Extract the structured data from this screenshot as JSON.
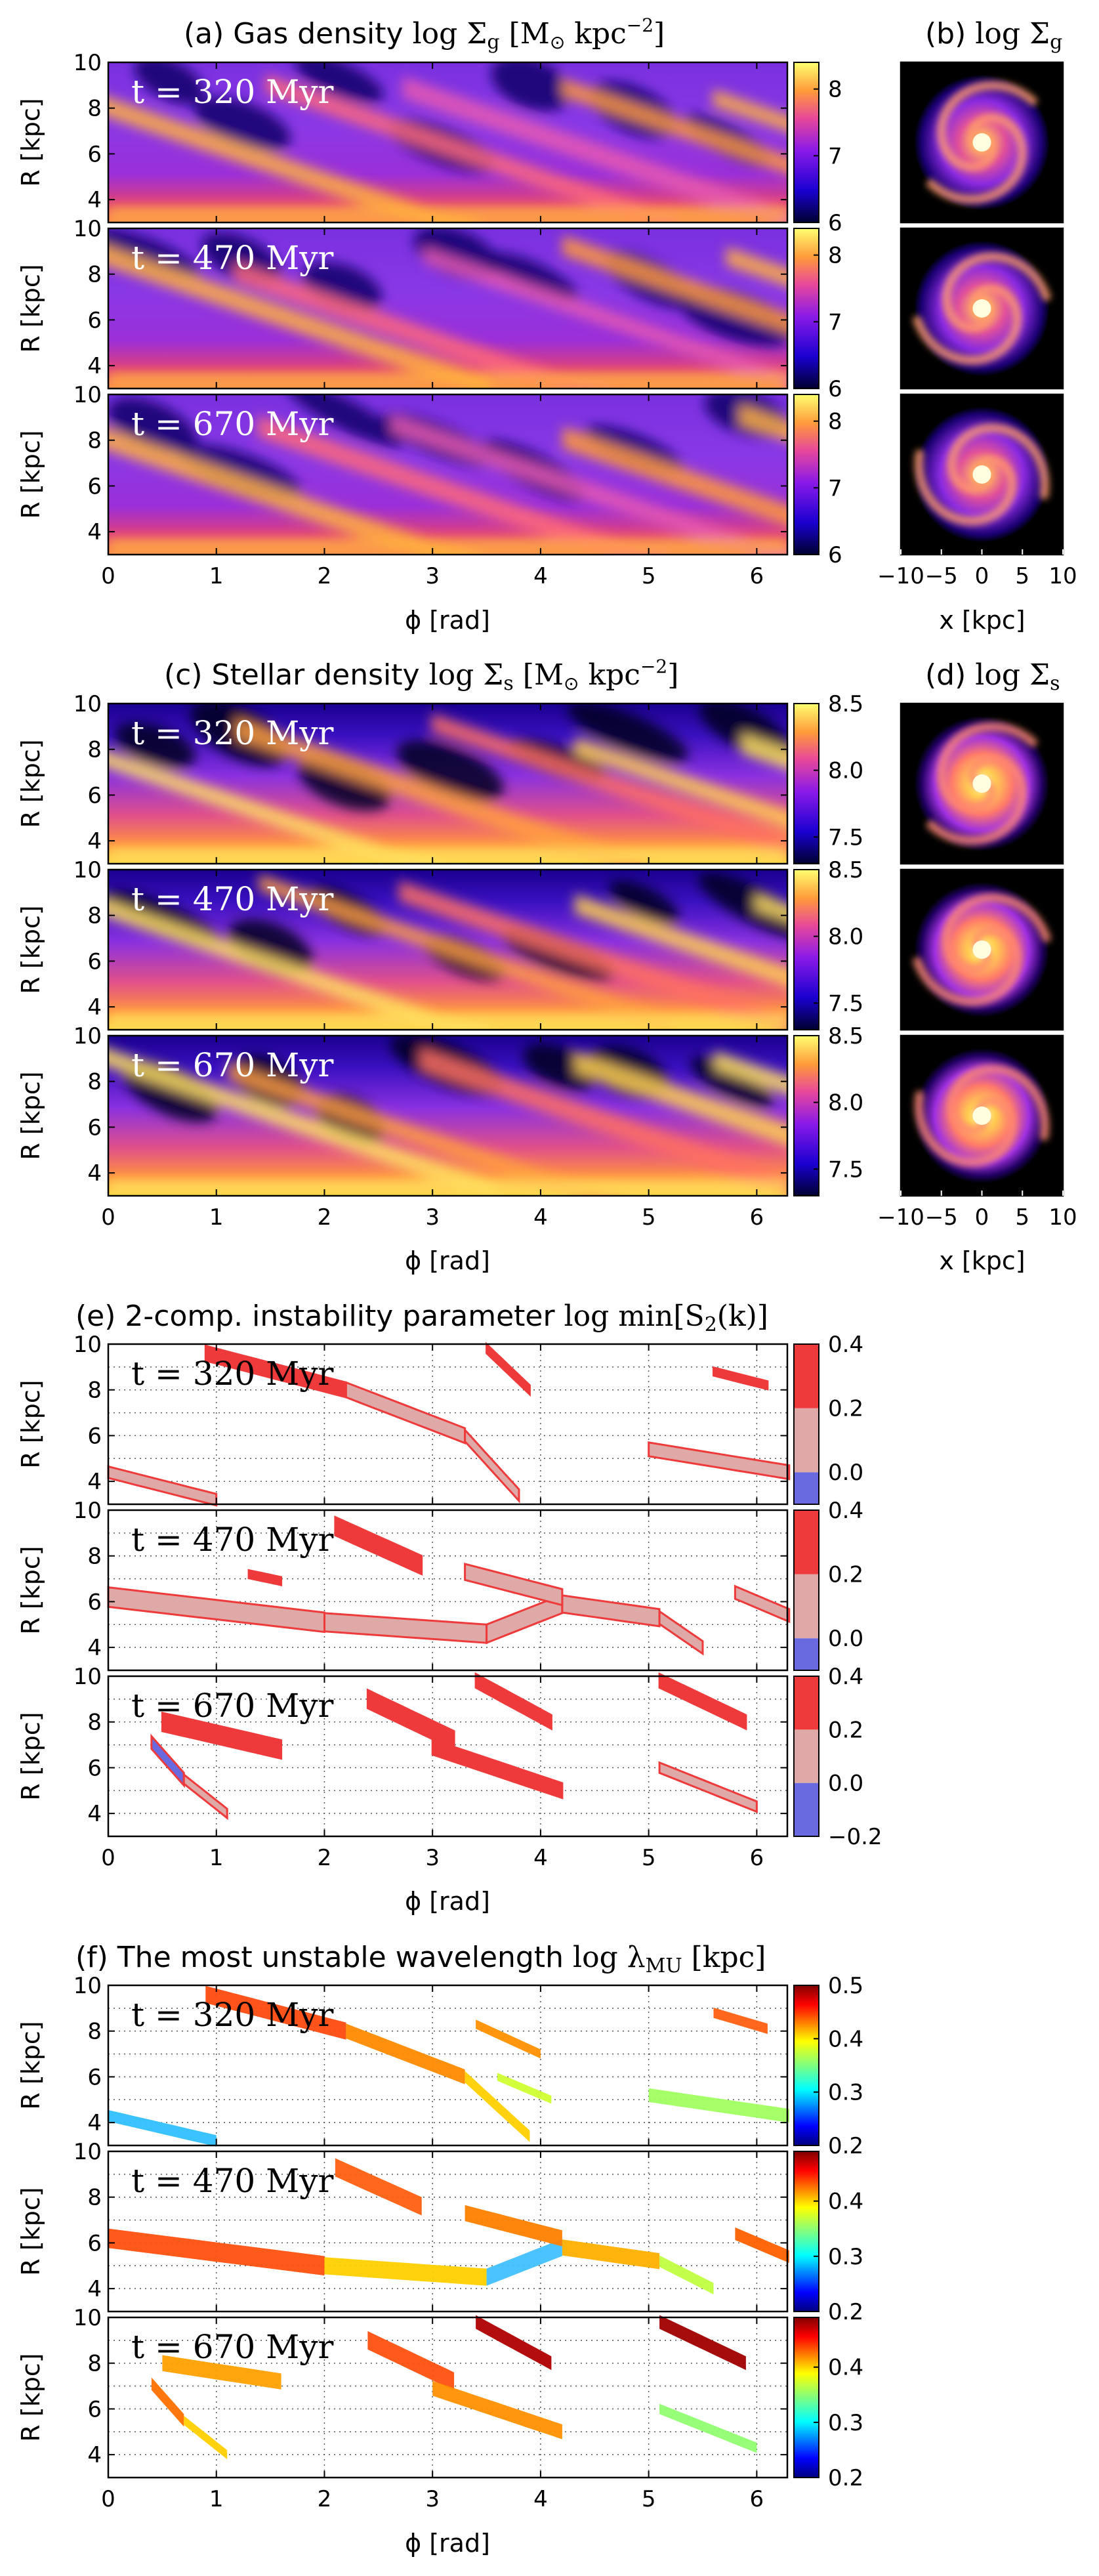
{
  "chart_data": [
    {
      "panel": "a",
      "type": "heatmap",
      "title": "(a) Gas density log Σ_g [M_⊙ kpc^−2]",
      "xlabel": "ϕ [rad]",
      "ylabel": "R [kpc]",
      "xlim": [
        0,
        6.283
      ],
      "ylim": [
        3,
        10
      ],
      "xticks": [
        "0",
        "1",
        "2",
        "3",
        "4",
        "5",
        "6"
      ],
      "yticks": [
        "4",
        "6",
        "8",
        "10"
      ],
      "colorbar": {
        "min": 6,
        "max": 8.4,
        "ticks": [
          "6",
          "7",
          "8"
        ],
        "colormap": "gnuplot2"
      },
      "times": [
        "t = 320 Myr",
        "t = 470 Myr",
        "t = 670 Myr"
      ]
    },
    {
      "panel": "b",
      "type": "heatmap",
      "title": "(b) log Σ_g",
      "xlabel": "x [kpc]",
      "xlim": [
        -10,
        10
      ],
      "xticks": [
        "−10",
        "−5",
        "0",
        "5",
        "10"
      ],
      "maps": 3
    },
    {
      "panel": "c",
      "type": "heatmap",
      "title": "(c) Stellar density log Σ_s [M_⊙ kpc^−2]",
      "xlabel": "ϕ [rad]",
      "ylabel": "R [kpc]",
      "xlim": [
        0,
        6.283
      ],
      "ylim": [
        3,
        10
      ],
      "xticks": [
        "0",
        "1",
        "2",
        "3",
        "4",
        "5",
        "6"
      ],
      "yticks": [
        "4",
        "6",
        "8",
        "10"
      ],
      "colorbar": {
        "min": 7.3,
        "max": 8.5,
        "ticks": [
          "7.5",
          "8.0",
          "8.5"
        ],
        "colormap": "gnuplot2"
      },
      "times": [
        "t = 320 Myr",
        "t = 470 Myr",
        "t = 670 Myr"
      ]
    },
    {
      "panel": "d",
      "type": "heatmap",
      "title": "(d) log Σ_s",
      "xlabel": "x [kpc]",
      "xlim": [
        -10,
        10
      ],
      "xticks": [
        "−10",
        "−5",
        "0",
        "5",
        "10"
      ],
      "maps": 3
    },
    {
      "panel": "e",
      "type": "heatmap",
      "title": "(e) 2-comp. instability parameter log min[S_2(k)]",
      "xlabel": "ϕ [rad]",
      "ylabel": "R [kpc]",
      "xlim": [
        0,
        6.283
      ],
      "ylim": [
        3,
        10
      ],
      "grid": true,
      "xticks": [
        "0",
        "1",
        "2",
        "3",
        "4",
        "5",
        "6"
      ],
      "yticks": [
        "4",
        "6",
        "8",
        "10"
      ],
      "colorbar": {
        "levels": [
          -0.2,
          0.0,
          0.2,
          0.4
        ],
        "colors": [
          "#6a6ae0",
          "#dea9a6",
          "#ee3a3a"
        ],
        "ticks_top": [
          "0.4",
          "0.2",
          "0.0"
        ],
        "ticks_bottom": [
          "0.4",
          "0.2",
          "0.0",
          "−0.2"
        ]
      },
      "times": [
        "t = 320 Myr",
        "t = 470 Myr",
        "t = 670 Myr"
      ]
    },
    {
      "panel": "f",
      "type": "heatmap",
      "title": "(f) The most unstable wavelength log λ_MU [kpc]",
      "xlabel": "ϕ [rad]",
      "ylabel": "R [kpc]",
      "xlim": [
        0,
        6.283
      ],
      "ylim": [
        3,
        10
      ],
      "grid": true,
      "xticks": [
        "0",
        "1",
        "2",
        "3",
        "4",
        "5",
        "6"
      ],
      "yticks": [
        "4",
        "6",
        "8",
        "10"
      ],
      "colorbar": {
        "min": 0.2,
        "max": 0.5,
        "colormap": "jet",
        "ticks_first": [
          "0.5",
          "0.4",
          "0.3",
          "0.2"
        ],
        "ticks_other": [
          "0.4",
          "0.3",
          "0.2"
        ]
      },
      "times": [
        "t = 320 Myr",
        "t = 470 Myr",
        "t = 670 Myr"
      ]
    }
  ],
  "labels": {
    "a": {
      "pre": "(a) Gas density ",
      "math": "log Σ",
      "sub": "g",
      "post": " [M",
      "sun": "⊙",
      "unit": " kpc",
      "exp": "−2",
      "close": "]"
    },
    "b": {
      "pre": "(b) ",
      "math": "log Σ",
      "sub": "g"
    },
    "c": {
      "pre": "(c) Stellar density ",
      "math": "log Σ",
      "sub": "s",
      "post": " [M",
      "sun": "⊙",
      "unit": " kpc",
      "exp": "−2",
      "close": "]"
    },
    "d": {
      "pre": "(d) ",
      "math": "log Σ",
      "sub": "s"
    },
    "e": {
      "pre": "(e) 2-comp. instability parameter ",
      "math": "log min[S",
      "sub": "2",
      "post": "(k)]"
    },
    "f": {
      "pre": "(f) The most unstable wavelength ",
      "math": "log λ",
      "sub": "MU",
      "post": " [kpc]"
    },
    "phi": "ϕ [rad]",
    "R": "R [kpc]",
    "xkpc": "x [kpc]",
    "t320": "t = 320 Myr",
    "t470": "t = 470 Myr",
    "t670": "t = 670 Myr"
  }
}
